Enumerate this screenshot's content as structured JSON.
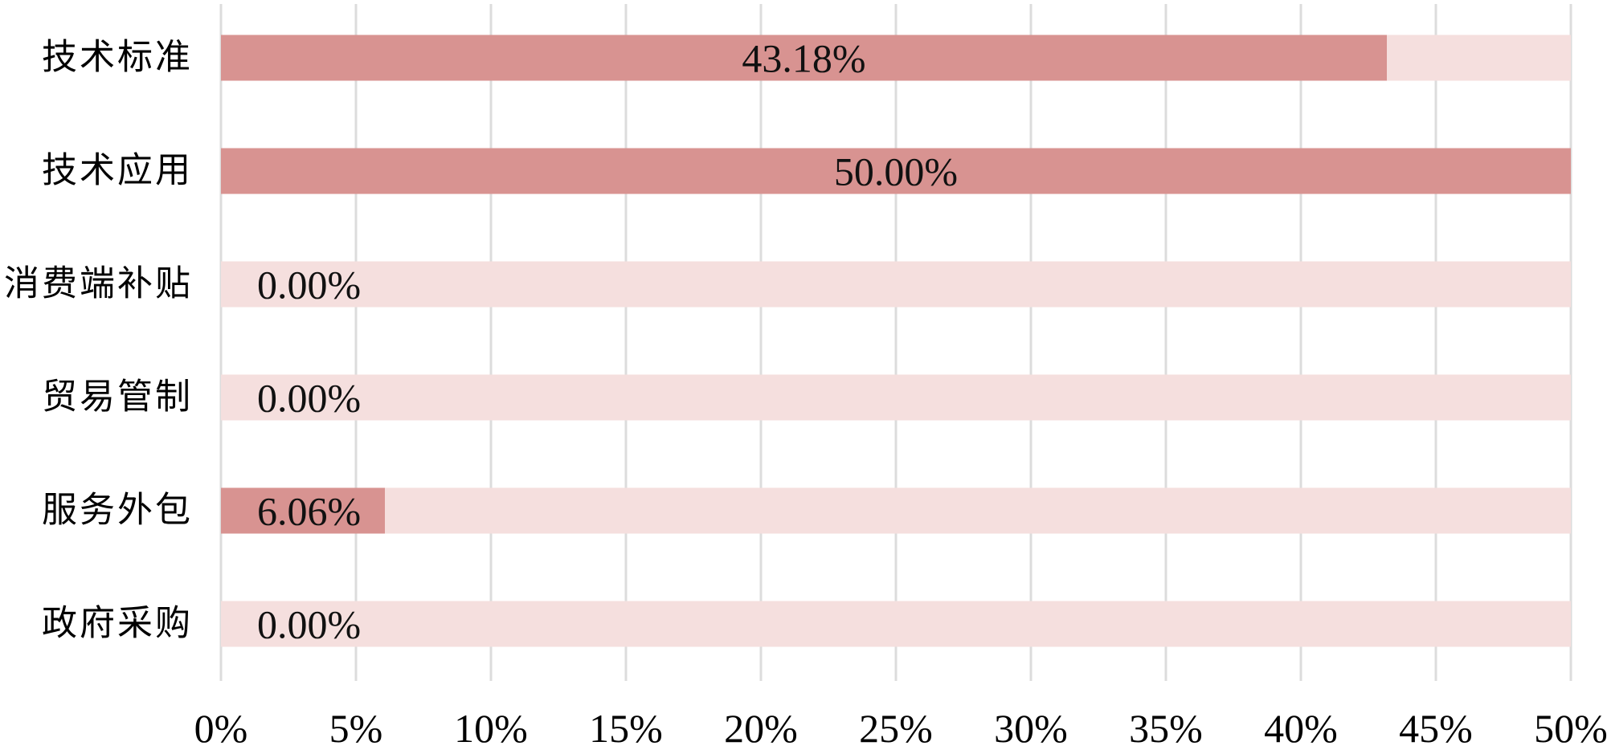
{
  "chart_data": {
    "type": "bar",
    "orientation": "horizontal",
    "title": "",
    "xlabel": "",
    "ylabel": "",
    "categories": [
      "技术标准",
      "技术应用",
      "消费端补贴",
      "贸易管制",
      "服务外包",
      "政府采购"
    ],
    "values": [
      43.18,
      50.0,
      0.0,
      0.0,
      6.06,
      0.0
    ],
    "value_labels": [
      "43.18%",
      "50.00%",
      "0.00%",
      "0.00%",
      "6.06%",
      "0.00%"
    ],
    "label_placement": [
      "center",
      "center",
      "inside-left",
      "inside-left",
      "inside-left",
      "inside-left"
    ],
    "x_ticks": [
      "0%",
      "5%",
      "10%",
      "15%",
      "20%",
      "25%",
      "30%",
      "35%",
      "40%",
      "45%",
      "50%"
    ],
    "x_tick_values": [
      0,
      5,
      10,
      15,
      20,
      25,
      30,
      35,
      40,
      45,
      50
    ],
    "xlim": [
      0,
      50
    ],
    "grid": true,
    "legend": false,
    "colors": {
      "bar_fill": "#d89391",
      "bar_track": "#f5dfde",
      "gridline": "#dcdcdc",
      "label_text": "#111111"
    }
  }
}
